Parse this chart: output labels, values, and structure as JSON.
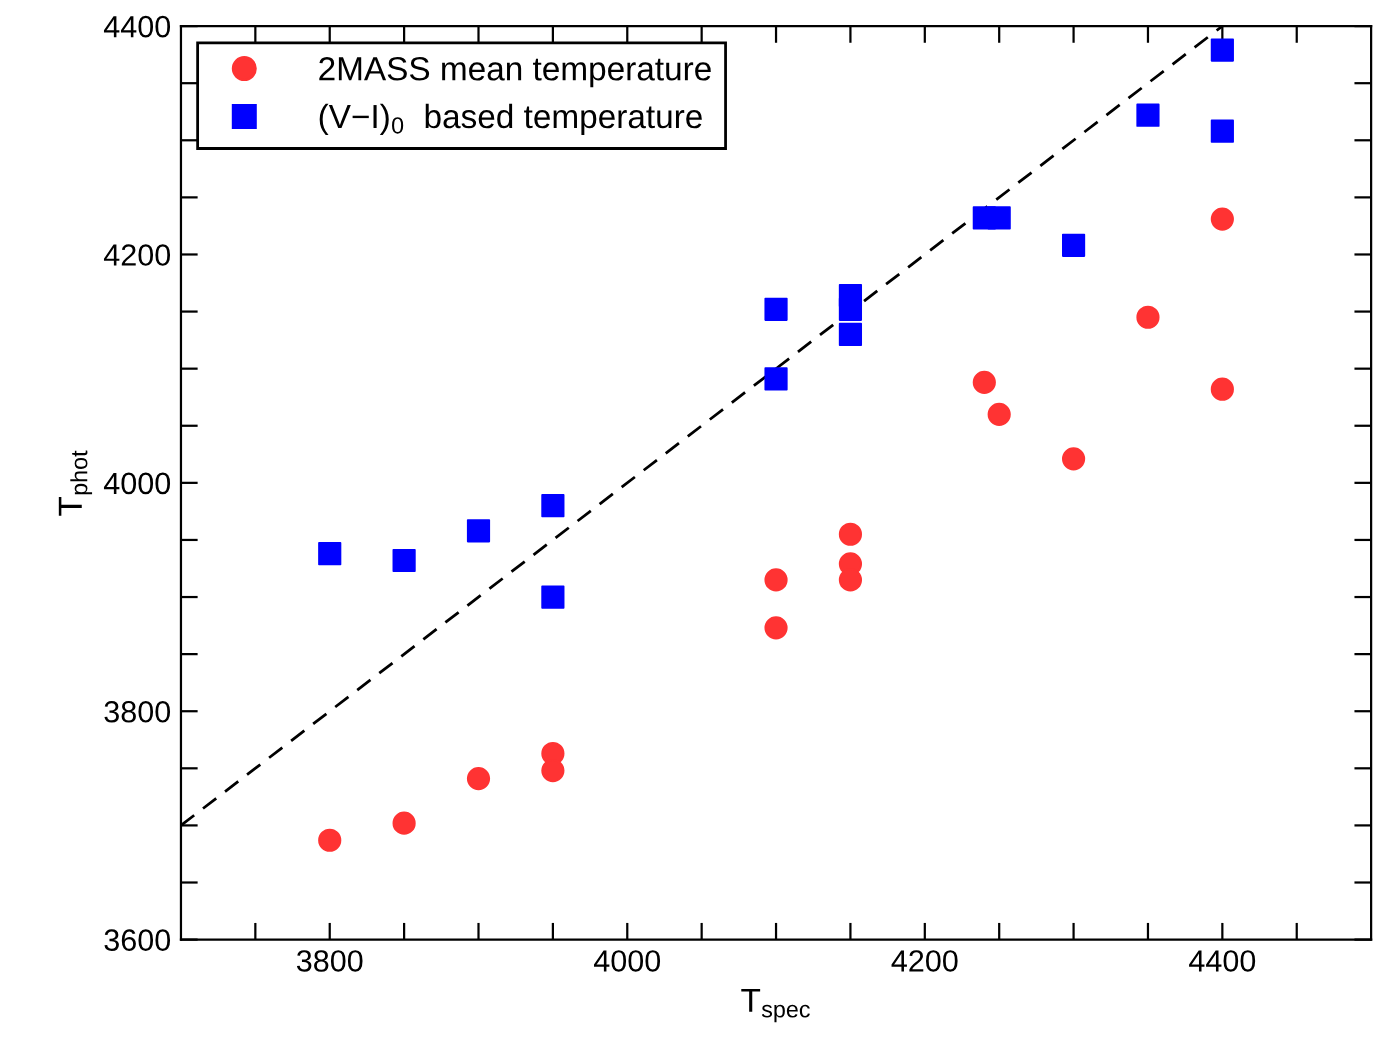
{
  "chart_data": {
    "type": "scatter",
    "xlabel": "T$_{spec}$",
    "ylabel": "T$_{phot}$",
    "xlim": [
      3700,
      4500
    ],
    "ylim": [
      3600,
      4400
    ],
    "xticks": [
      {
        "value": 3750,
        "label": null
      },
      3800,
      {
        "value": 3850,
        "label": null
      },
      {
        "value": 3900,
        "label": null
      },
      {
        "value": 3950,
        "label": null
      },
      4000,
      {
        "value": 4050,
        "label": null
      },
      {
        "value": 4100,
        "label": null
      },
      {
        "value": 4150,
        "label": null
      },
      4200,
      {
        "value": 4250,
        "label": null
      },
      {
        "value": 4300,
        "label": null
      },
      {
        "value": 4350,
        "label": null
      },
      4400,
      {
        "value": 4450,
        "label": null
      }
    ],
    "yticks": [
      3600,
      {
        "value": 3650,
        "label": null
      },
      {
        "value": 3700,
        "label": null
      },
      {
        "value": 3750,
        "label": null
      },
      3800,
      {
        "value": 3850,
        "label": null
      },
      {
        "value": 3900,
        "label": null
      },
      {
        "value": 3950,
        "label": null
      },
      4000,
      {
        "value": 4050,
        "label": null
      },
      {
        "value": 4100,
        "label": null
      },
      {
        "value": 4150,
        "label": null
      },
      4200,
      {
        "value": 4250,
        "label": null
      },
      {
        "value": 4300,
        "label": null
      },
      {
        "value": 4350,
        "label": null
      },
      4400
    ],
    "grid": false,
    "legend": "top left",
    "series": [
      {
        "type": "line",
        "color": "#000000",
        "line_style": "dashed",
        "marker": "none",
        "x": [
          3700,
          4400
        ],
        "values": [
          3700,
          4400
        ]
      },
      {
        "name": "2MASS mean temperature",
        "marker": "circle",
        "color": "#ff3333",
        "x": [
          3800,
          3850,
          3900,
          3950,
          3950,
          4100,
          4100,
          4150,
          4150,
          4150,
          4240,
          4250,
          4300,
          4350,
          4400,
          4400
        ],
        "values": [
          3687,
          3702,
          3741,
          3763,
          3748,
          3915,
          3873,
          3955,
          3929,
          3915,
          4088,
          4060,
          4021,
          4145,
          4231,
          4082
        ]
      },
      {
        "name": "(V−I)$_{0}$  based temperature",
        "marker": "square",
        "color": "#0000ff",
        "x": [
          3800,
          3850,
          3900,
          3950,
          3950,
          4100,
          4100,
          4150,
          4150,
          4150,
          4240,
          4250,
          4300,
          4350,
          4400,
          4400
        ],
        "values": [
          3938,
          3932,
          3958,
          3980,
          3900,
          4152,
          4091,
          4164,
          4152,
          4130,
          4232,
          4232,
          4208,
          4322,
          4379,
          4308
        ]
      }
    ]
  }
}
